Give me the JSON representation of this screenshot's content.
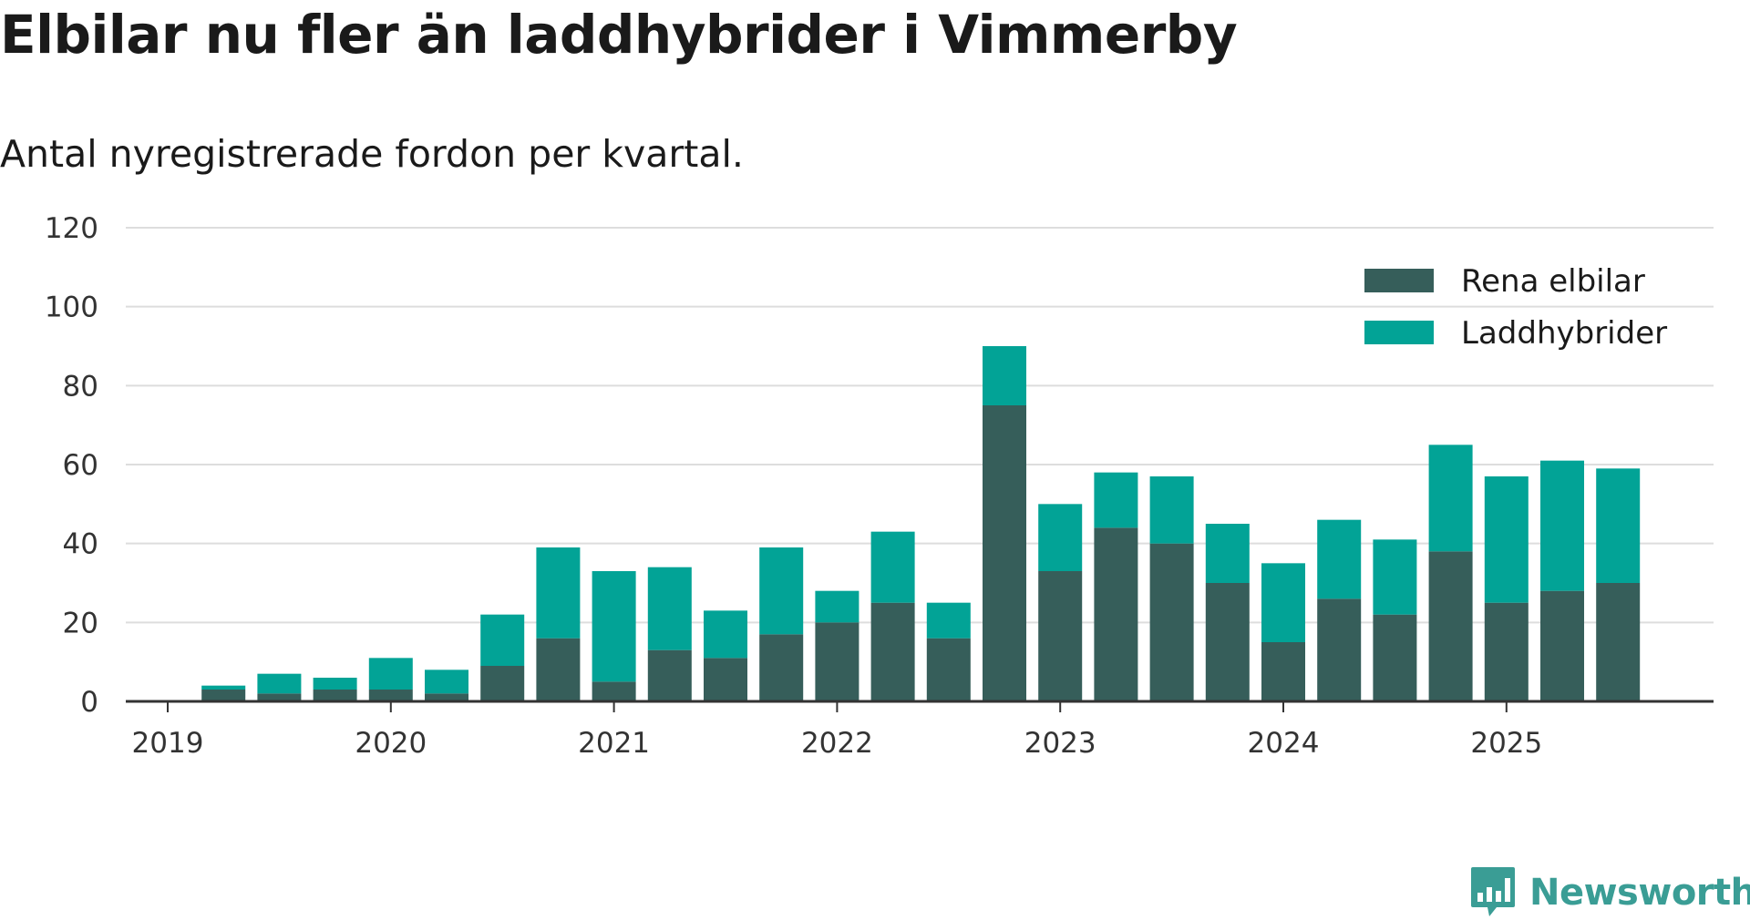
{
  "chart_data": {
    "type": "bar",
    "stacked": true,
    "title": "Elbilar nu fler än laddhybrider i Vimmerby",
    "subtitle": "Antal nyregistrerade fordon per kvartal.",
    "xlabel": "",
    "ylabel": "",
    "ylim": [
      0,
      120
    ],
    "yticks": [
      "0",
      "20",
      "40",
      "60",
      "80",
      "100",
      "120"
    ],
    "year_ticks": [
      "2019",
      "2020",
      "2021",
      "2022",
      "2023",
      "2024",
      "2025"
    ],
    "categories": [
      "2019 Q2",
      "2019 Q3",
      "2019 Q4",
      "2020 Q1",
      "2020 Q2",
      "2020 Q3",
      "2020 Q4",
      "2021 Q1",
      "2021 Q2",
      "2021 Q3",
      "2021 Q4",
      "2022 Q1",
      "2022 Q2",
      "2022 Q3",
      "2022 Q4",
      "2023 Q1",
      "2023 Q2",
      "2023 Q3",
      "2023 Q4",
      "2024 Q1",
      "2024 Q2",
      "2024 Q3",
      "2024 Q4",
      "2025 Q1",
      "2025 Q2",
      "2025 Q3"
    ],
    "series": [
      {
        "name": "Rena elbilar",
        "color": "#365e5a",
        "values": [
          3,
          2,
          3,
          3,
          2,
          9,
          16,
          5,
          13,
          11,
          17,
          20,
          25,
          16,
          75,
          33,
          44,
          40,
          30,
          15,
          26,
          22,
          38,
          25,
          28,
          30
        ]
      },
      {
        "name": "Laddhybrider",
        "color": "#02a396",
        "values": [
          1,
          5,
          3,
          8,
          6,
          13,
          23,
          28,
          21,
          12,
          22,
          8,
          18,
          9,
          15,
          17,
          14,
          17,
          15,
          20,
          20,
          19,
          27,
          32,
          33,
          29
        ]
      }
    ],
    "legend_position": "top-right",
    "grid": true
  },
  "brand": {
    "name": "Newsworthy",
    "icon": "newsworthy-logo-icon",
    "color": "#3a9d95"
  }
}
